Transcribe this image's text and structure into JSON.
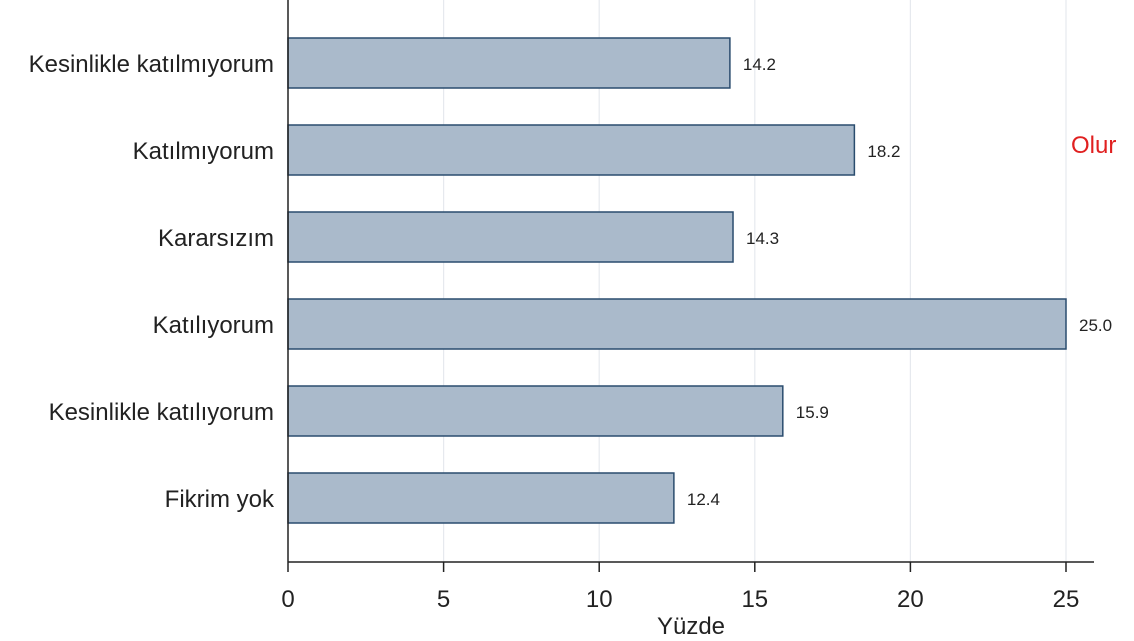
{
  "chart_data": {
    "type": "bar",
    "orientation": "horizontal",
    "categories": [
      "Kesinlikle katılmıyorum",
      "Katılmıyorum",
      "Kararsızım",
      "Katılıyorum",
      "Kesinlikle katılıyorum",
      "Fikrim yok"
    ],
    "values": [
      14.2,
      18.2,
      14.3,
      25.0,
      15.9,
      12.4
    ],
    "value_labels": [
      "14.2",
      "18.2",
      "14.3",
      "25.0",
      "15.9",
      "12.4"
    ],
    "xlabel": "Yüzde",
    "ylabel": "",
    "xlim": [
      0,
      25
    ],
    "xticks": [
      0,
      5,
      10,
      15,
      20,
      25
    ],
    "xtick_labels": [
      "0",
      "5",
      "10",
      "15",
      "20",
      "25"
    ],
    "grid": "vertical",
    "bar_color": "#aabacb",
    "bar_edge_color": "#2a4c6e",
    "annotation": {
      "text": "Olur",
      "color": "#e02020"
    }
  }
}
